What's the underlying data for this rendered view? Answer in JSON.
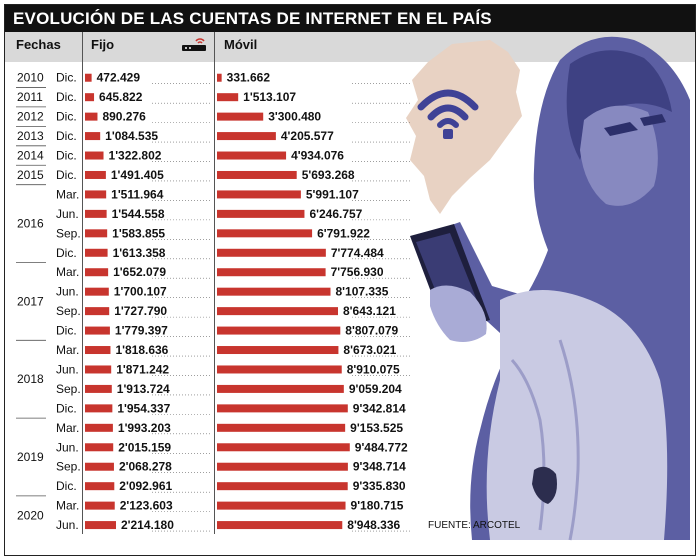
{
  "title": "EVOLUCIÓN DE LAS CUENTAS DE INTERNET EN EL PAÍS",
  "headers": {
    "fechas": "Fechas",
    "fijo": "Fijo",
    "movil": "Móvil"
  },
  "source": "FUENTE: ARCOTEL",
  "colors": {
    "bar": "#c8352e",
    "header_band": "#d9d9d9",
    "title_bg": "#111111",
    "map": "#e8d2c3",
    "wifi": "#3f4296",
    "photo_tint": "#5c5fa3"
  },
  "icons": [
    "wifi-router-icon",
    "ecuador-map-icon",
    "wifi-signal-icon",
    "woman-with-phone-photo"
  ],
  "chart_data": {
    "type": "bar",
    "orientation": "horizontal",
    "years": [
      {
        "year": "2010",
        "rows": 1
      },
      {
        "year": "2011",
        "rows": 1
      },
      {
        "year": "2012",
        "rows": 1
      },
      {
        "year": "2013",
        "rows": 1
      },
      {
        "year": "2014",
        "rows": 1
      },
      {
        "year": "2015",
        "rows": 1
      },
      {
        "year": "2016",
        "rows": 4
      },
      {
        "year": "2017",
        "rows": 4
      },
      {
        "year": "2018",
        "rows": 4
      },
      {
        "year": "2019",
        "rows": 4
      },
      {
        "year": "2020",
        "rows": 2
      }
    ],
    "periods": [
      "Dic.",
      "Dic.",
      "Dic.",
      "Dic.",
      "Dic.",
      "Dic.",
      "Mar.",
      "Jun.",
      "Sep.",
      "Dic.",
      "Mar.",
      "Jun.",
      "Sep.",
      "Dic.",
      "Mar.",
      "Jun.",
      "Sep.",
      "Dic.",
      "Mar.",
      "Jun.",
      "Sep.",
      "Dic.",
      "Mar.",
      "Jun."
    ],
    "series": [
      {
        "name": "Fijo",
        "values": [
          472429,
          645822,
          890276,
          1084535,
          1322802,
          1491405,
          1511964,
          1544558,
          1583855,
          1613358,
          1652079,
          1700107,
          1727790,
          1779397,
          1818636,
          1871242,
          1913724,
          1954337,
          1993203,
          2015159,
          2068278,
          2092961,
          2123603,
          2214180
        ],
        "labels": [
          "472.429",
          "645.822",
          "890.276",
          "1'084.535",
          "1'322.802",
          "1'491.405",
          "1'511.964",
          "1'544.558",
          "1'583.855",
          "1'613.358",
          "1'652.079",
          "1'700.107",
          "1'727.790",
          "1'779.397",
          "1'818.636",
          "1'871.242",
          "1'913.724",
          "1'954.337",
          "1'993.203",
          "2'015.159",
          "2'068.278",
          "2'092.961",
          "2'123.603",
          "2'214.180"
        ]
      },
      {
        "name": "Móvil",
        "values": [
          331662,
          1513107,
          3300480,
          4205577,
          4934076,
          5693268,
          5991107,
          6246757,
          6791922,
          7774484,
          7756930,
          8107335,
          8643121,
          8807079,
          8673021,
          8910075,
          9059204,
          9342814,
          9153525,
          9484772,
          9348714,
          9335830,
          9180715,
          8948336
        ],
        "labels": [
          "331.662",
          "1'513.107",
          "3'300.480",
          "4'205.577",
          "4'934.076",
          "5'693.268",
          "5'991.107",
          "6'246.757",
          "6'791.922",
          "7'774.484",
          "7'756.930",
          "8'107.335",
          "8'643.121",
          "8'807.079",
          "8'673.021",
          "8'910.075",
          "9'059.204",
          "9'342.814",
          "9'153.525",
          "9'484.772",
          "9'348.714",
          "9'335.830",
          "9'180.715",
          "8'948.336"
        ]
      }
    ]
  }
}
